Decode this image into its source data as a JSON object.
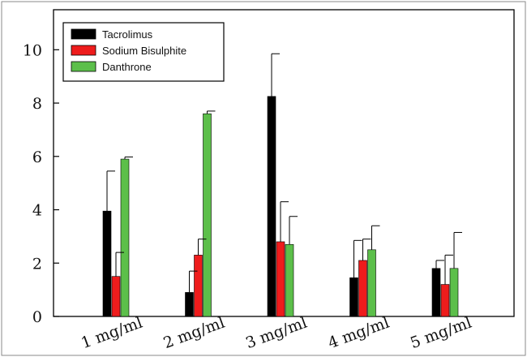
{
  "chart_data": {
    "type": "bar",
    "title": "",
    "xlabel": "",
    "ylabel": "",
    "categories": [
      "1 mg/ml",
      "2 mg/ml",
      "3 mg/ml",
      "4 mg/ml",
      "5 mg/ml"
    ],
    "ylim": [
      0,
      11.5
    ],
    "yticks": [
      0,
      2,
      4,
      6,
      8,
      10
    ],
    "grid": false,
    "legend_position": "top-left",
    "series": [
      {
        "name": "Tacrolimus",
        "color": "#000000",
        "values": [
          3.95,
          0.9,
          8.25,
          1.45,
          1.8
        ],
        "errors": [
          1.5,
          0.8,
          1.6,
          1.4,
          0.3
        ]
      },
      {
        "name": "Sodium Bisulphite",
        "color": "#ee1c1c",
        "values": [
          1.5,
          2.3,
          2.8,
          2.1,
          1.2
        ],
        "errors": [
          0.9,
          0.6,
          1.5,
          0.8,
          1.1
        ]
      },
      {
        "name": "Danthrone",
        "color": "#5cbf4a",
        "values": [
          5.9,
          7.6,
          2.7,
          2.5,
          1.8
        ],
        "errors": [
          0.08,
          0.1,
          1.05,
          0.9,
          1.35
        ]
      }
    ]
  }
}
